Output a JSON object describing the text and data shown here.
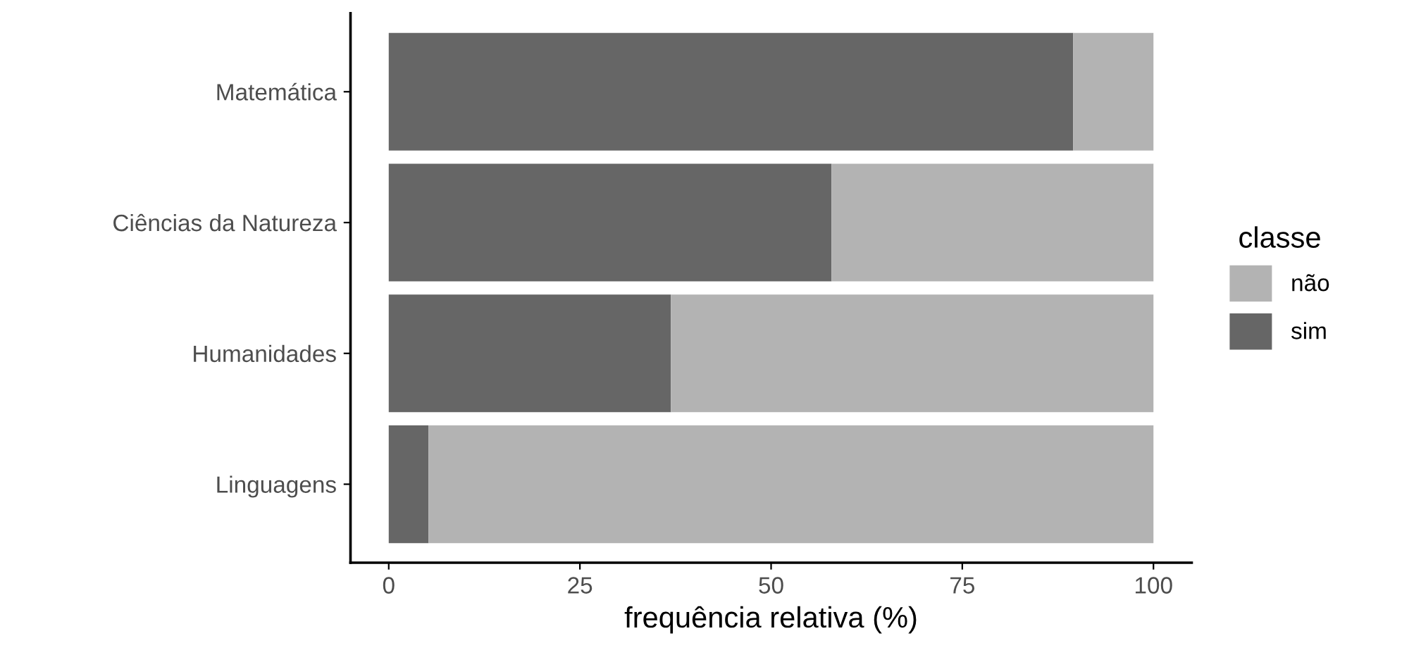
{
  "chart_data": {
    "type": "bar",
    "orientation": "horizontal",
    "stacked": true,
    "xlabel": "frequência relativa (%)",
    "legend_title": "classe",
    "legend": "right",
    "categories": [
      "Matemática",
      "Ciências da Natureza",
      "Humanidades",
      "Linguagens"
    ],
    "series": [
      {
        "name": "sim",
        "color": "#666666",
        "values": [
          89.5,
          57.9,
          36.9,
          5.2
        ]
      },
      {
        "name": "não",
        "color": "#b3b3b3",
        "values": [
          10.5,
          42.1,
          63.1,
          94.8
        ]
      }
    ],
    "xlim": [
      -5,
      105
    ],
    "xticks": [
      0,
      25,
      50,
      75,
      100
    ],
    "grid": false
  }
}
